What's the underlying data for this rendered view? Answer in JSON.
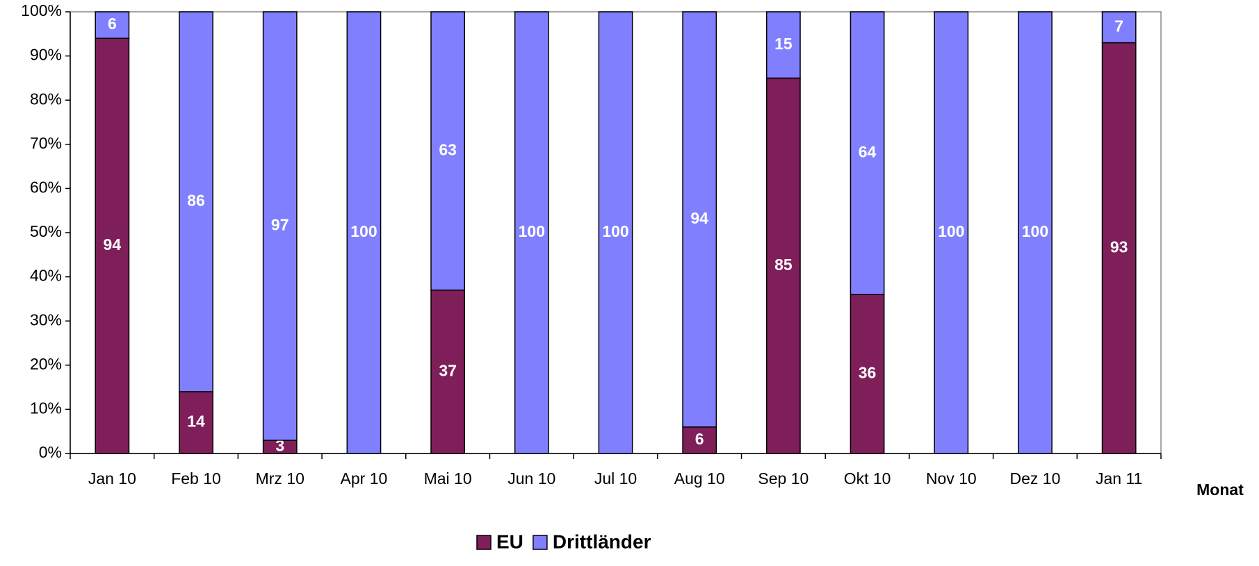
{
  "chart_data": {
    "type": "stacked_bar",
    "categories": [
      "Jan 10",
      "Feb 10",
      "Mrz 10",
      "Apr 10",
      "Mai 10",
      "Jun 10",
      "Jul 10",
      "Aug 10",
      "Sep 10",
      "Okt 10",
      "Nov 10",
      "Dez 10",
      "Jan 11"
    ],
    "series": [
      {
        "name": "EU",
        "color": "#7f1f5a",
        "values": [
          94,
          14,
          3,
          0,
          37,
          0,
          0,
          6,
          85,
          36,
          0,
          0,
          93
        ]
      },
      {
        "name": "Drittländer",
        "color": "#8080ff",
        "values": [
          6,
          86,
          97,
          100,
          63,
          100,
          100,
          94,
          15,
          64,
          100,
          100,
          7
        ]
      }
    ],
    "x_label": "Monat",
    "ylim": [
      0,
      100
    ],
    "yticks": [
      {
        "value": 0,
        "label": "0%"
      },
      {
        "value": 10,
        "label": "10%"
      },
      {
        "value": 20,
        "label": "20%"
      },
      {
        "value": 30,
        "label": "30%"
      },
      {
        "value": 40,
        "label": "40%"
      },
      {
        "value": 50,
        "label": "50%"
      },
      {
        "value": 60,
        "label": "60%"
      },
      {
        "value": 70,
        "label": "70%"
      },
      {
        "value": 80,
        "label": "80%"
      },
      {
        "value": 90,
        "label": "90%"
      },
      {
        "value": 100,
        "label": "100%"
      }
    ],
    "legend": "bottom"
  }
}
